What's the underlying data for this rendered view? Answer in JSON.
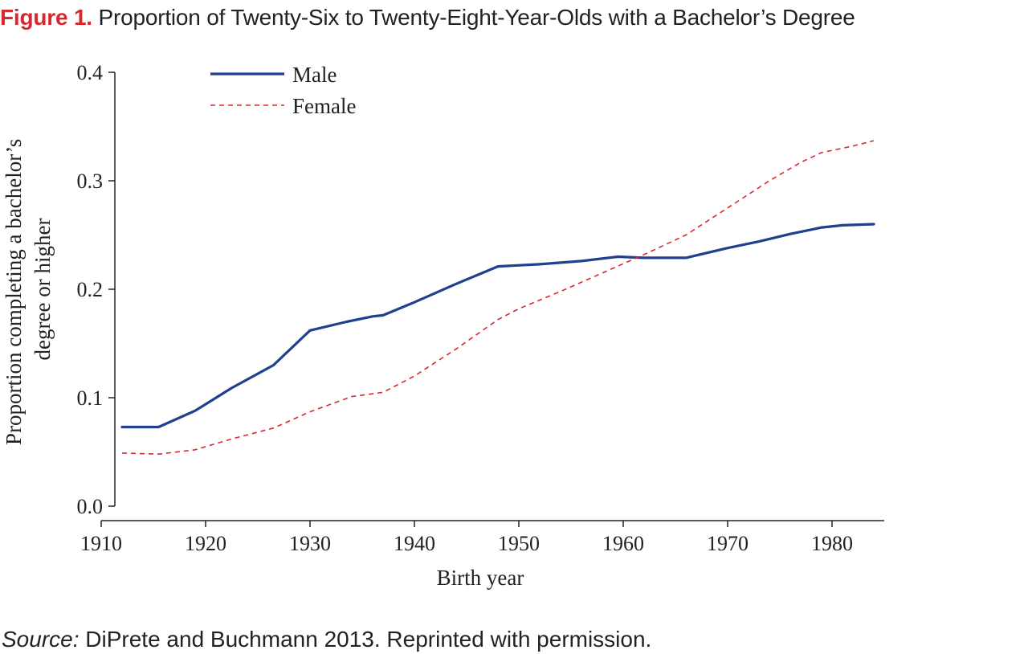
{
  "figure": {
    "label": "Figure 1.",
    "title": "Proportion of Twenty-Six to Twenty-Eight-Year-Olds with a Bachelor’s Degree"
  },
  "source": {
    "label": "Source:",
    "text": "DiPrete and Buchmann 2013. Reprinted with permission."
  },
  "colors": {
    "title_label": "#d7282f",
    "male": "#1f3f8f",
    "female": "#d7282f",
    "axis": "#222222"
  },
  "chart_data": {
    "type": "line",
    "title": "",
    "xlabel": "Birth year",
    "ylabel_lines": [
      "Proportion completing a bachelor’s",
      "degree or higher"
    ],
    "xlim": [
      1910,
      1985
    ],
    "ylim": [
      0,
      0.4
    ],
    "xticks": [
      1910,
      1920,
      1930,
      1940,
      1950,
      1960,
      1970,
      1980
    ],
    "yticks": [
      0.0,
      0.1,
      0.2,
      0.3,
      0.4
    ],
    "ytick_labels": [
      "0.0",
      "0.1",
      "0.2",
      "0.3",
      "0.4"
    ],
    "grid": false,
    "legend": "top-left",
    "series": [
      {
        "name": "Male",
        "style": "solid",
        "color": "#1f3f8f",
        "points": [
          [
            1912,
            0.073
          ],
          [
            1915.5,
            0.073
          ],
          [
            1919,
            0.088
          ],
          [
            1922.5,
            0.109
          ],
          [
            1926.5,
            0.13
          ],
          [
            1930,
            0.162
          ],
          [
            1933.5,
            0.17
          ],
          [
            1936,
            0.175
          ],
          [
            1937,
            0.176
          ],
          [
            1940,
            0.188
          ],
          [
            1944,
            0.205
          ],
          [
            1948,
            0.221
          ],
          [
            1952,
            0.223
          ],
          [
            1956,
            0.226
          ],
          [
            1959.5,
            0.23
          ],
          [
            1962,
            0.229
          ],
          [
            1966,
            0.229
          ],
          [
            1970,
            0.238
          ],
          [
            1973,
            0.244
          ],
          [
            1976,
            0.251
          ],
          [
            1979,
            0.257
          ],
          [
            1981,
            0.259
          ],
          [
            1984,
            0.26
          ]
        ]
      },
      {
        "name": "Female",
        "style": "dashed",
        "color": "#d7282f",
        "points": [
          [
            1912,
            0.049
          ],
          [
            1915.5,
            0.048
          ],
          [
            1919,
            0.052
          ],
          [
            1922.5,
            0.062
          ],
          [
            1926.5,
            0.072
          ],
          [
            1930,
            0.087
          ],
          [
            1934,
            0.101
          ],
          [
            1937,
            0.105
          ],
          [
            1940,
            0.12
          ],
          [
            1944,
            0.145
          ],
          [
            1948,
            0.172
          ],
          [
            1950,
            0.182
          ],
          [
            1954,
            0.198
          ],
          [
            1958,
            0.215
          ],
          [
            1962,
            0.232
          ],
          [
            1966,
            0.25
          ],
          [
            1970,
            0.275
          ],
          [
            1974,
            0.3
          ],
          [
            1977,
            0.317
          ],
          [
            1979,
            0.326
          ],
          [
            1982,
            0.332
          ],
          [
            1984,
            0.337
          ]
        ]
      }
    ]
  }
}
